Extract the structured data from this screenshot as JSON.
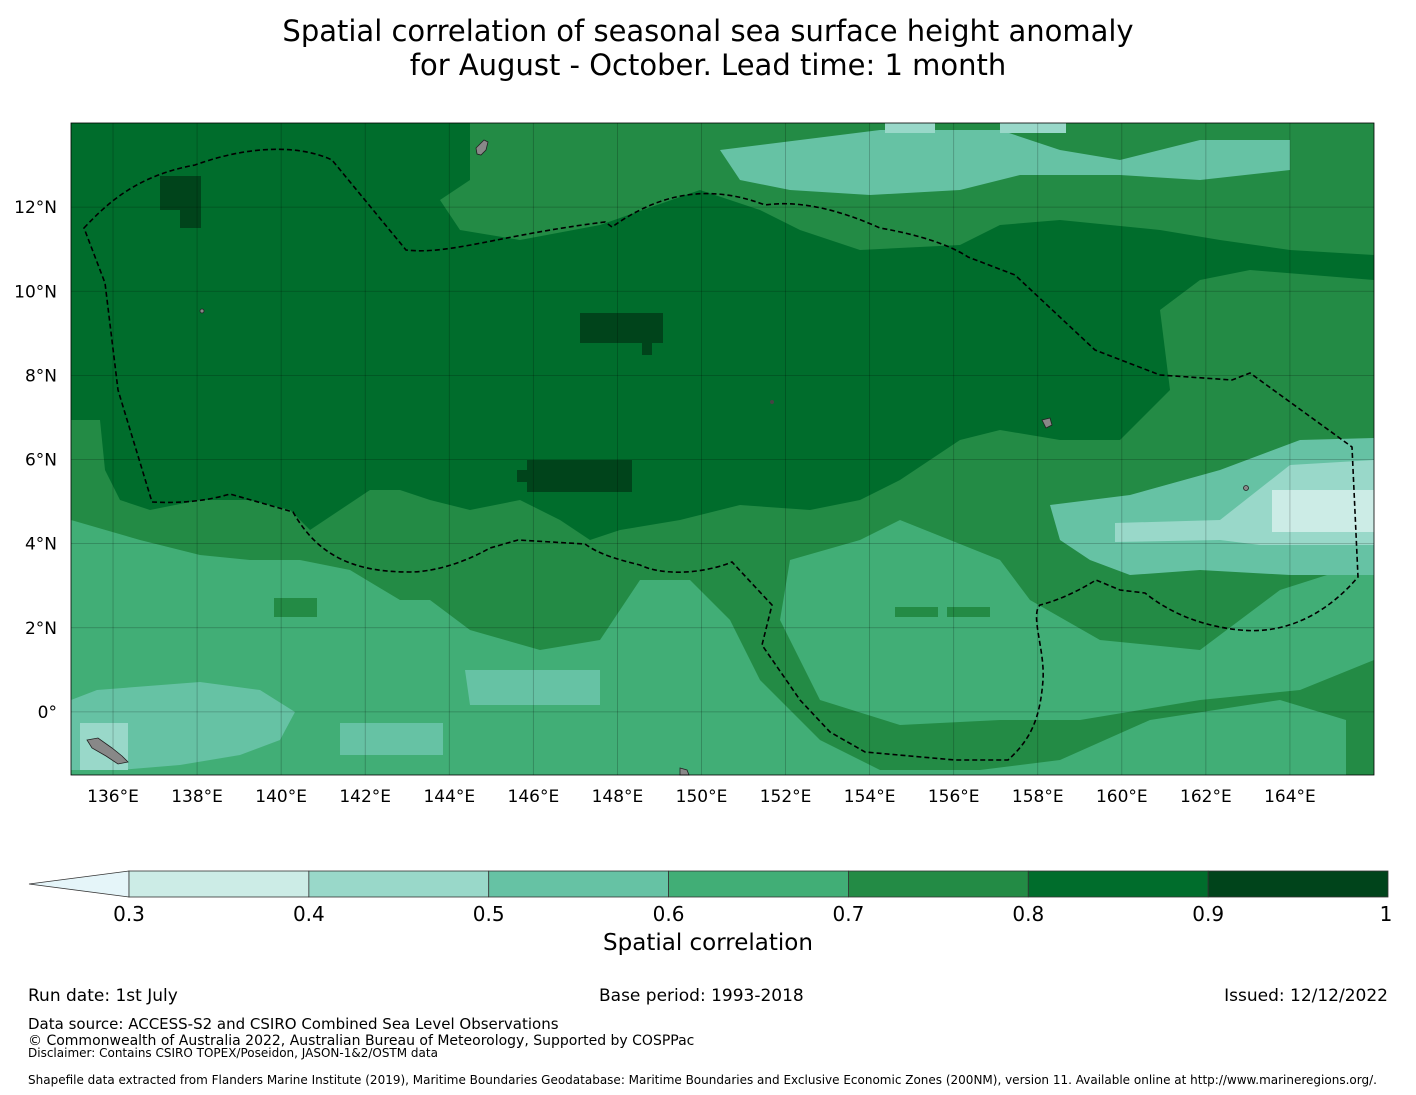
{
  "title": {
    "line1": "Spatial correlation of seasonal sea surface height anomaly",
    "line2": "for August - October. Lead time: 1 month"
  },
  "map": {
    "lon_range": [
      135,
      166
    ],
    "lat_range": [
      -1.5,
      14
    ],
    "lon_ticks": [
      "136°E",
      "138°E",
      "140°E",
      "142°E",
      "144°E",
      "146°E",
      "148°E",
      "150°E",
      "152°E",
      "154°E",
      "156°E",
      "158°E",
      "160°E",
      "162°E",
      "164°E"
    ],
    "lat_ticks": [
      "12°N",
      "10°N",
      "8°N",
      "6°N",
      "4°N",
      "2°N",
      "0°"
    ],
    "dominant_classes": [
      {
        "region": "central-north core",
        "range": "0.8-0.9"
      },
      {
        "region": "dark patches near 147°E 6°N and 148°E 8.5°N",
        "range": "0.9-1"
      },
      {
        "region": "southern area",
        "range": "0.6-0.7"
      },
      {
        "region": "eastern area near 165°E 4.5°N",
        "range": "0.3-0.4"
      }
    ]
  },
  "colorbar": {
    "ticks": [
      "0.3",
      "0.4",
      "0.5",
      "0.6",
      "0.7",
      "0.8",
      "0.9",
      "1"
    ],
    "colors": [
      "#e5f5f9",
      "#ccece6",
      "#99d8c9",
      "#66c2a4",
      "#41ae76",
      "#238b45",
      "#006d2c",
      "#00441b"
    ],
    "label": "Spatial correlation"
  },
  "footer": {
    "run_date": "Run date: 1st July",
    "base_period": "Base period: 1993-2018",
    "issued": "Issued: 12/12/2022",
    "data_source": "Data source: ACCESS-S2 and CSIRO Combined Sea Level Observations",
    "copyright": "© Commonwealth of Australia 2022, Australian Bureau of Meteorology, Supported by COSPPac",
    "disclaimer": "Disclaimer: Contains CSIRO TOPEX/Poseidon, JASON-1&2/OSTM data",
    "shapefile": "Shapefile data extracted from Flanders Marine Institute (2019), Maritime Boundaries Geodatabase: Maritime Boundaries and Exclusive Economic Zones (200NM), version 11. Available online at http://www.marineregions.org/."
  }
}
